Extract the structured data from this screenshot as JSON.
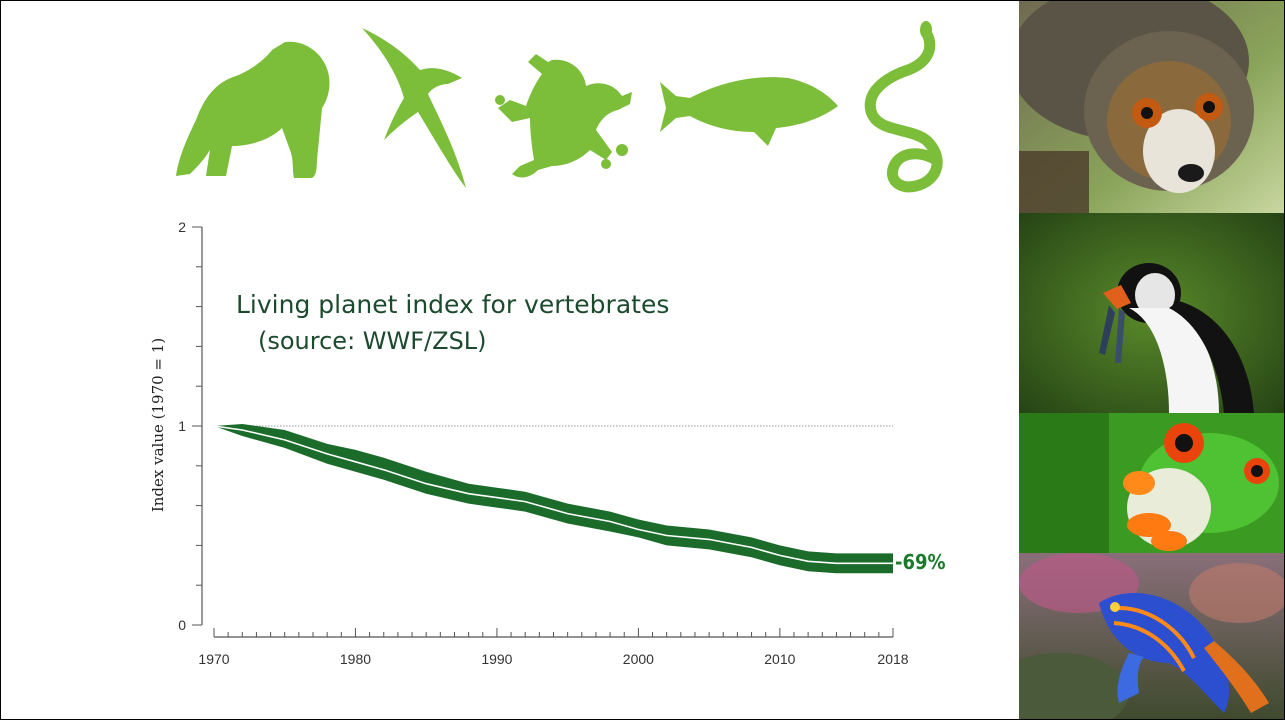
{
  "colors": {
    "band": "#1b6b2a",
    "trend_line": "#ffffff",
    "silhouette": "#7cbd3a",
    "title_text": "#1c4a2e",
    "end_label": "#1a7a2a"
  },
  "silhouettes": [
    "gorilla-icon",
    "bird-icon",
    "frog-icon",
    "fish-icon",
    "snake-icon"
  ],
  "photos": [
    "lemur-photo",
    "puffin-photo",
    "tree-frog-photo",
    "mandarinfish-photo"
  ],
  "chart_data": {
    "type": "area",
    "title": "Living planet index for vertebrates",
    "subtitle": "(source: WWF/ZSL)",
    "ylabel": "Index value (1970 = 1)",
    "xlabel": "",
    "xlim": [
      1970,
      2018
    ],
    "ylim": [
      0,
      2
    ],
    "x_tick_labels": [
      "1970",
      "1980",
      "1990",
      "2000",
      "2010",
      "2018"
    ],
    "y_tick_labels": [
      "0",
      "1",
      "2"
    ],
    "reference_line": 1,
    "end_label": "-69%",
    "series": [
      {
        "x": [
          1970,
          1972,
          1975,
          1978,
          1980,
          1982,
          1985,
          1988,
          1990,
          1992,
          1995,
          1998,
          2000,
          2002,
          2005,
          2008,
          2010,
          2012,
          2014,
          2016,
          2018
        ],
        "y": [
          1.0,
          0.98,
          0.93,
          0.86,
          0.82,
          0.78,
          0.71,
          0.66,
          0.64,
          0.62,
          0.56,
          0.52,
          0.48,
          0.45,
          0.43,
          0.39,
          0.35,
          0.32,
          0.31,
          0.31,
          0.31
        ],
        "lower": [
          1.0,
          0.95,
          0.89,
          0.81,
          0.77,
          0.73,
          0.66,
          0.61,
          0.59,
          0.57,
          0.51,
          0.47,
          0.44,
          0.4,
          0.38,
          0.34,
          0.3,
          0.27,
          0.26,
          0.26,
          0.26
        ],
        "upper": [
          1.0,
          1.01,
          0.98,
          0.91,
          0.88,
          0.84,
          0.77,
          0.71,
          0.69,
          0.67,
          0.61,
          0.57,
          0.53,
          0.5,
          0.48,
          0.44,
          0.4,
          0.37,
          0.36,
          0.36,
          0.36
        ]
      }
    ]
  }
}
